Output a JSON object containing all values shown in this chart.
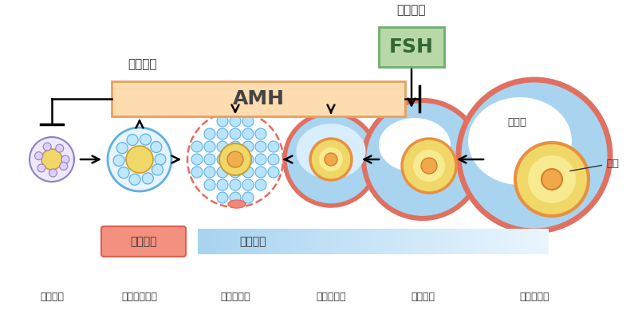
{
  "bg_color": "#ffffff",
  "follicle_labels": [
    "原始卵胞",
    "小前胞状卵胞",
    "前胞状卵胞",
    "小胞状卵胞",
    "胞状卵胞",
    "排卵前卵胞"
  ],
  "amh_facecolor": "#FDDCB0",
  "amh_edgecolor": "#E8A060",
  "fsh_facecolor": "#B8D8A8",
  "fsh_edgecolor": "#6AAF6A",
  "salmon": "#F08878",
  "lightblue": "#A8D4F0",
  "stroke_salmon": "#E07060",
  "stroke_blue": "#60B0E0",
  "stroke_purple": "#9080C0",
  "yellow": "#F0D868",
  "yellow_inner": "#F8EA90",
  "orange": "#E89040",
  "white": "#FFFFFF"
}
